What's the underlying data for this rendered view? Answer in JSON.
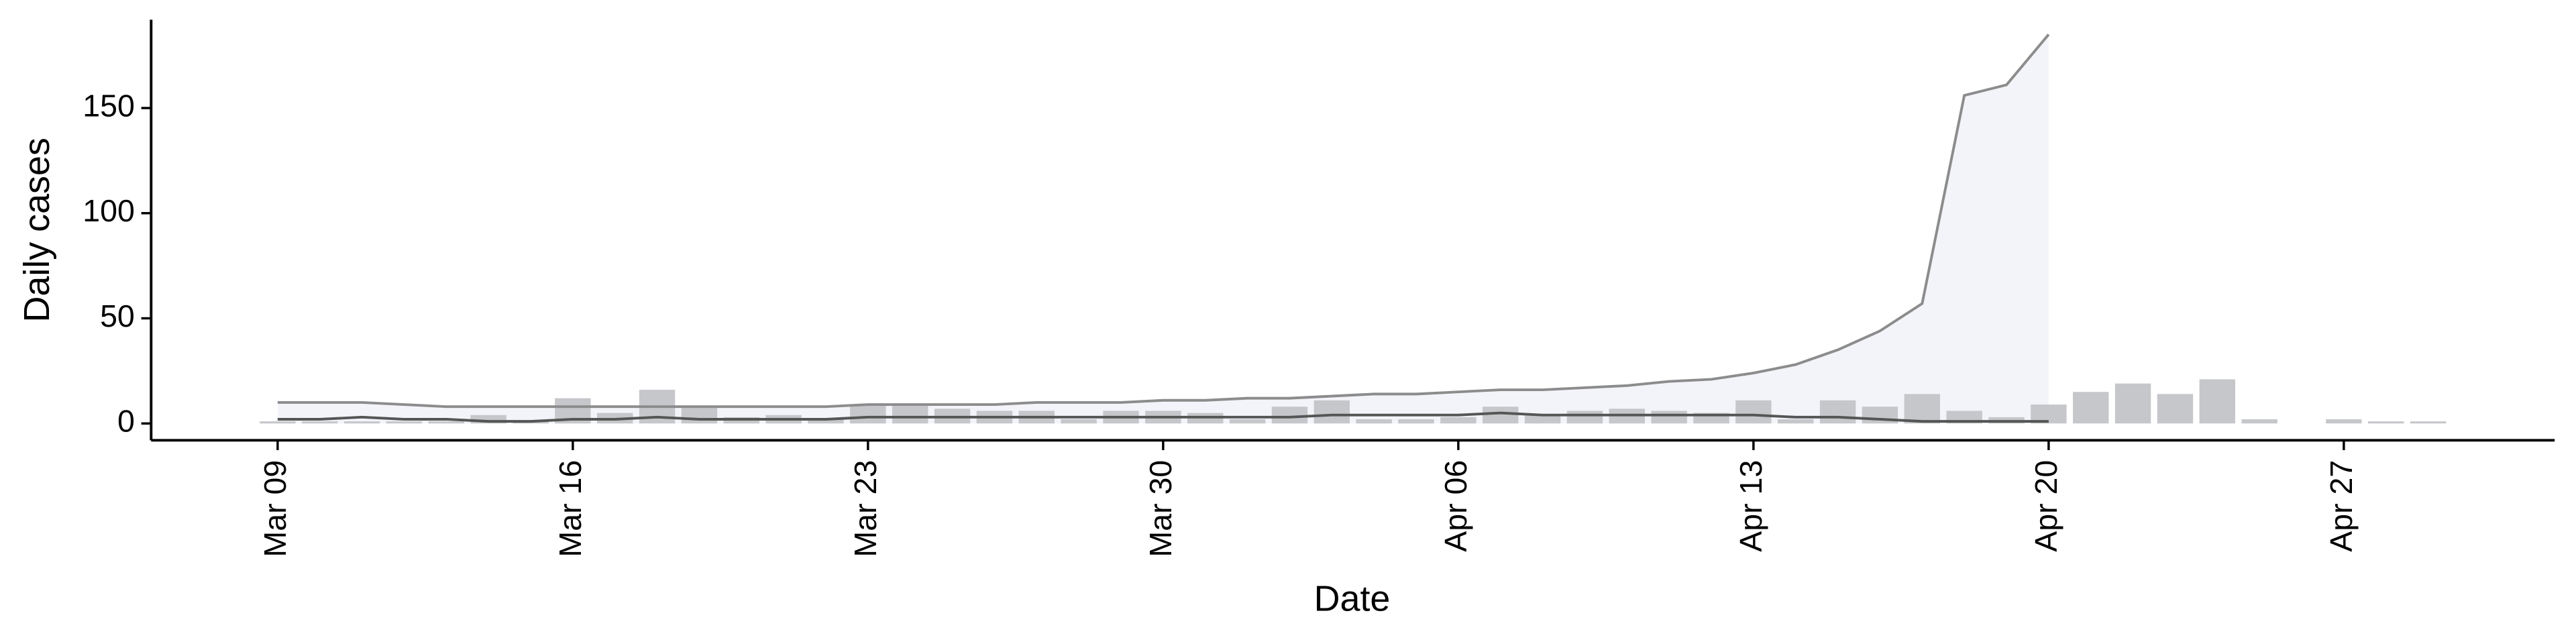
{
  "chart_data": {
    "type": "bar",
    "xlabel": "Date",
    "ylabel": "Daily cases",
    "x": [
      "Mar 09",
      "Mar 10",
      "Mar 11",
      "Mar 12",
      "Mar 13",
      "Mar 14",
      "Mar 15",
      "Mar 16",
      "Mar 17",
      "Mar 18",
      "Mar 19",
      "Mar 20",
      "Mar 21",
      "Mar 22",
      "Mar 23",
      "Mar 24",
      "Mar 25",
      "Mar 26",
      "Mar 27",
      "Mar 28",
      "Mar 29",
      "Mar 30",
      "Mar 31",
      "Apr 01",
      "Apr 02",
      "Apr 03",
      "Apr 04",
      "Apr 05",
      "Apr 06",
      "Apr 07",
      "Apr 08",
      "Apr 09",
      "Apr 10",
      "Apr 11",
      "Apr 12",
      "Apr 13",
      "Apr 14",
      "Apr 15",
      "Apr 16",
      "Apr 17",
      "Apr 18",
      "Apr 19",
      "Apr 20",
      "Apr 21",
      "Apr 22",
      "Apr 23",
      "Apr 24",
      "Apr 25",
      "Apr 26",
      "Apr 27",
      "Apr 28",
      "Apr 29"
    ],
    "values": [
      1,
      1,
      1,
      1,
      1,
      4,
      1,
      12,
      5,
      16,
      8,
      3,
      4,
      2,
      9,
      9,
      7,
      6,
      6,
      2,
      6,
      6,
      5,
      2,
      8,
      11,
      2,
      2,
      3,
      8,
      4,
      6,
      7,
      6,
      5,
      11,
      2,
      11,
      8,
      14,
      6,
      3,
      9,
      15,
      19,
      14,
      21,
      2,
      0,
      2,
      1,
      1
    ],
    "color": "#c6c7ca",
    "lines": [
      {
        "color": "#8c8c8c",
        "fill": "#eef0f6",
        "values": [
          10,
          10,
          10,
          9,
          8,
          8,
          8,
          8,
          8,
          8,
          8,
          8,
          8,
          8,
          9,
          9,
          9,
          9,
          10,
          10,
          10,
          11,
          11,
          12,
          12,
          13,
          14,
          14,
          15,
          16,
          16,
          17,
          18,
          20,
          21,
          24,
          28,
          35,
          44,
          57,
          156,
          161,
          185,
          null,
          null,
          null,
          null,
          null,
          null,
          null,
          null,
          null
        ]
      },
      {
        "color": "#555555",
        "values": [
          2,
          2,
          3,
          2,
          2,
          1,
          1,
          2,
          2,
          3,
          2,
          2,
          2,
          2,
          3,
          3,
          3,
          3,
          3,
          3,
          3,
          3,
          3,
          3,
          3,
          4,
          4,
          4,
          4,
          5,
          4,
          4,
          4,
          4,
          4,
          4,
          3,
          3,
          2,
          1,
          1,
          1,
          1,
          null,
          null,
          null,
          null,
          null,
          null,
          null,
          null,
          null
        ]
      }
    ],
    "xlim": [
      "Mar 06",
      "May 02"
    ],
    "xticks": [
      "Mar 09",
      "Mar 16",
      "Mar 23",
      "Mar 30",
      "Apr 06",
      "Apr 13",
      "Apr 20",
      "Apr 27"
    ],
    "ylim": [
      -8,
      192
    ],
    "yticks": [
      0,
      50,
      100,
      150
    ]
  }
}
